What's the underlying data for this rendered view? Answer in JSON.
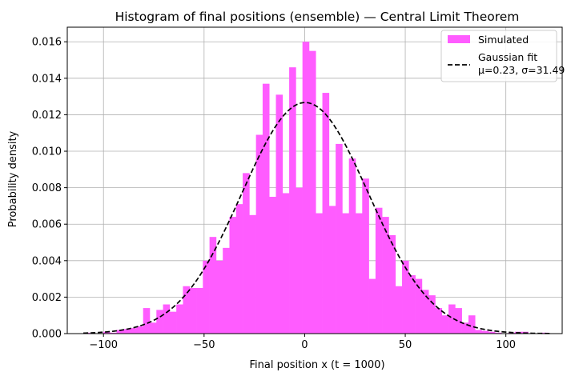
{
  "chart_data": {
    "type": "bar",
    "title": "Histogram of final positions (ensemble) — Central Limit Theorem",
    "xlabel": "Final position x (t = 1000)",
    "ylabel": "Probability density",
    "xlim": [
      -118,
      128
    ],
    "ylim": [
      0,
      0.0168
    ],
    "x_ticks": [
      -100,
      -50,
      0,
      50,
      100
    ],
    "x_tick_labels": [
      "−100",
      "−50",
      "0",
      "50",
      "100"
    ],
    "y_ticks": [
      0,
      0.002,
      0.004,
      0.006,
      0.008,
      0.01,
      0.012,
      0.014,
      0.016
    ],
    "y_tick_labels": [
      "0.000",
      "0.002",
      "0.004",
      "0.006",
      "0.008",
      "0.010",
      "0.012",
      "0.014",
      "0.016"
    ],
    "grid": true,
    "legend_position": "top-right",
    "colors": {
      "histogram": "#ff5cff",
      "fit": "#000000"
    },
    "histogram": {
      "name": "Simulated",
      "bins": [
        {
          "x0": -110,
          "x1": -106.7,
          "density": 5e-05
        },
        {
          "x0": -106.7,
          "x1": -103.4,
          "density": 2e-05
        },
        {
          "x0": -103.4,
          "x1": -100.1,
          "density": 0.0
        },
        {
          "x0": -100.1,
          "x1": -96.8,
          "density": 0.0001
        },
        {
          "x0": -96.8,
          "x1": -93.5,
          "density": 5e-05
        },
        {
          "x0": -93.5,
          "x1": -90.2,
          "density": 0.0002
        },
        {
          "x0": -90.2,
          "x1": -86.9,
          "density": 0.00025
        },
        {
          "x0": -86.9,
          "x1": -83.6,
          "density": 0.0003
        },
        {
          "x0": -83.6,
          "x1": -80.3,
          "density": 0.0004
        },
        {
          "x0": -80.3,
          "x1": -77.0,
          "density": 0.0014
        },
        {
          "x0": -77.0,
          "x1": -73.7,
          "density": 0.0006
        },
        {
          "x0": -73.7,
          "x1": -70.4,
          "density": 0.0013
        },
        {
          "x0": -70.4,
          "x1": -67.1,
          "density": 0.0016
        },
        {
          "x0": -67.1,
          "x1": -63.8,
          "density": 0.0012
        },
        {
          "x0": -63.8,
          "x1": -60.5,
          "density": 0.0016
        },
        {
          "x0": -60.5,
          "x1": -57.2,
          "density": 0.0026
        },
        {
          "x0": -57.2,
          "x1": -53.9,
          "density": 0.0025
        },
        {
          "x0": -53.9,
          "x1": -50.6,
          "density": 0.0025
        },
        {
          "x0": -50.6,
          "x1": -47.3,
          "density": 0.004
        },
        {
          "x0": -47.3,
          "x1": -44.0,
          "density": 0.0053
        },
        {
          "x0": -44.0,
          "x1": -40.7,
          "density": 0.004
        },
        {
          "x0": -40.7,
          "x1": -37.4,
          "density": 0.0047
        },
        {
          "x0": -37.4,
          "x1": -34.1,
          "density": 0.0064
        },
        {
          "x0": -34.1,
          "x1": -30.8,
          "density": 0.0071
        },
        {
          "x0": -30.8,
          "x1": -27.5,
          "density": 0.0088
        },
        {
          "x0": -27.5,
          "x1": -24.2,
          "density": 0.0065
        },
        {
          "x0": -24.2,
          "x1": -20.9,
          "density": 0.0109
        },
        {
          "x0": -20.9,
          "x1": -17.6,
          "density": 0.0137
        },
        {
          "x0": -17.6,
          "x1": -14.3,
          "density": 0.0075
        },
        {
          "x0": -14.3,
          "x1": -11.0,
          "density": 0.0131
        },
        {
          "x0": -11.0,
          "x1": -7.7,
          "density": 0.0077
        },
        {
          "x0": -7.7,
          "x1": -4.4,
          "density": 0.0146
        },
        {
          "x0": -4.4,
          "x1": -1.1,
          "density": 0.008
        },
        {
          "x0": -1.1,
          "x1": 2.2,
          "density": 0.016
        },
        {
          "x0": 2.2,
          "x1": 5.5,
          "density": 0.0155
        },
        {
          "x0": 5.5,
          "x1": 8.8,
          "density": 0.0066
        },
        {
          "x0": 8.8,
          "x1": 12.1,
          "density": 0.0132
        },
        {
          "x0": 12.1,
          "x1": 15.4,
          "density": 0.007
        },
        {
          "x0": 15.4,
          "x1": 18.7,
          "density": 0.0104
        },
        {
          "x0": 18.7,
          "x1": 22.0,
          "density": 0.0066
        },
        {
          "x0": 22.0,
          "x1": 25.3,
          "density": 0.0096
        },
        {
          "x0": 25.3,
          "x1": 28.6,
          "density": 0.0066
        },
        {
          "x0": 28.6,
          "x1": 31.9,
          "density": 0.0085
        },
        {
          "x0": 31.9,
          "x1": 35.2,
          "density": 0.003
        },
        {
          "x0": 35.2,
          "x1": 38.5,
          "density": 0.0069
        },
        {
          "x0": 38.5,
          "x1": 41.8,
          "density": 0.0064
        },
        {
          "x0": 41.8,
          "x1": 45.1,
          "density": 0.0054
        },
        {
          "x0": 45.1,
          "x1": 48.4,
          "density": 0.0026
        },
        {
          "x0": 48.4,
          "x1": 51.7,
          "density": 0.004
        },
        {
          "x0": 51.7,
          "x1": 55.0,
          "density": 0.0032
        },
        {
          "x0": 55.0,
          "x1": 58.3,
          "density": 0.003
        },
        {
          "x0": 58.3,
          "x1": 61.6,
          "density": 0.0024
        },
        {
          "x0": 61.6,
          "x1": 64.9,
          "density": 0.0021
        },
        {
          "x0": 64.9,
          "x1": 68.2,
          "density": 0.0014
        },
        {
          "x0": 68.2,
          "x1": 71.5,
          "density": 0.001
        },
        {
          "x0": 71.5,
          "x1": 74.8,
          "density": 0.0016
        },
        {
          "x0": 74.8,
          "x1": 78.1,
          "density": 0.0014
        },
        {
          "x0": 78.1,
          "x1": 81.4,
          "density": 0.0006
        },
        {
          "x0": 81.4,
          "x1": 84.7,
          "density": 0.001
        },
        {
          "x0": 84.7,
          "x1": 88.0,
          "density": 0.0002
        },
        {
          "x0": 88.0,
          "x1": 91.3,
          "density": 0.00015
        },
        {
          "x0": 91.3,
          "x1": 94.6,
          "density": 0.0001
        },
        {
          "x0": 94.6,
          "x1": 97.9,
          "density": 5e-05
        },
        {
          "x0": 97.9,
          "x1": 101.2,
          "density": 0.0
        },
        {
          "x0": 101.2,
          "x1": 104.5,
          "density": 5e-05
        },
        {
          "x0": 104.5,
          "x1": 107.8,
          "density": 0.0001
        },
        {
          "x0": 107.8,
          "x1": 111.1,
          "density": 0.0001
        },
        {
          "x0": 111.1,
          "x1": 114.4,
          "density": 0.0
        },
        {
          "x0": 114.4,
          "x1": 117.7,
          "density": 0.0
        },
        {
          "x0": 117.7,
          "x1": 121.0,
          "density": 5e-05
        }
      ]
    },
    "fit": {
      "name": "Gaussian fit\nμ=0.23, σ=31.49",
      "mu": 0.23,
      "sigma": 31.49,
      "x_range": [
        -110,
        122
      ],
      "style": "dashed"
    },
    "legend": [
      {
        "label": "Simulated",
        "kind": "patch"
      },
      {
        "label": "Gaussian fit",
        "label2": "μ=0.23, σ=31.49",
        "kind": "dashed-line"
      }
    ]
  }
}
